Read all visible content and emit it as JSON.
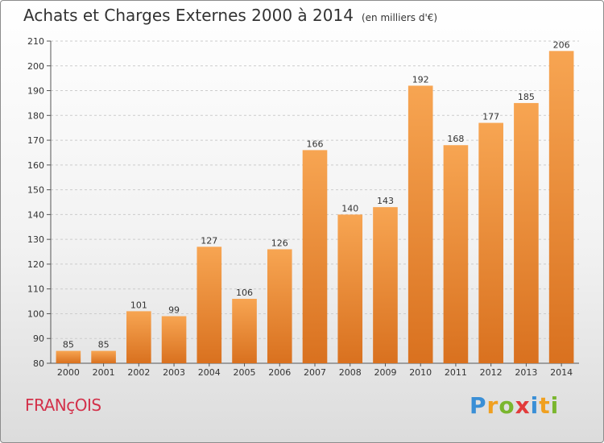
{
  "header": {
    "title": "Achats et Charges Externes 2000 à 2014",
    "unit": "(en milliers d'€)"
  },
  "footer": {
    "commune": "FRANçOIS",
    "logo": {
      "letters": [
        "P",
        "r",
        "o",
        "x",
        "i",
        "t",
        "i"
      ],
      "colors": [
        "#3a8fd6",
        "#f0a020",
        "#7ab62e",
        "#e23b3b",
        "#3a8fd6",
        "#f0a020",
        "#7ab62e"
      ]
    }
  },
  "chart_data": {
    "type": "bar",
    "title": "Achats et Charges Externes 2000 à 2014",
    "subtitle": "(en milliers d'€)",
    "categories": [
      "2000",
      "2001",
      "2002",
      "2003",
      "2004",
      "2005",
      "2006",
      "2007",
      "2008",
      "2009",
      "2010",
      "2011",
      "2012",
      "2013",
      "2014"
    ],
    "values": [
      85,
      85,
      101,
      99,
      127,
      106,
      126,
      166,
      140,
      143,
      192,
      168,
      177,
      185,
      206
    ],
    "ylim": [
      80,
      210
    ],
    "yticks": [
      80,
      90,
      100,
      110,
      120,
      130,
      140,
      150,
      160,
      170,
      180,
      190,
      200,
      210
    ],
    "grid": true,
    "colors": {
      "bar_top": "#f7a552",
      "bar_bottom": "#d9711f",
      "grid": "#cccccc",
      "text": "#333333"
    }
  }
}
